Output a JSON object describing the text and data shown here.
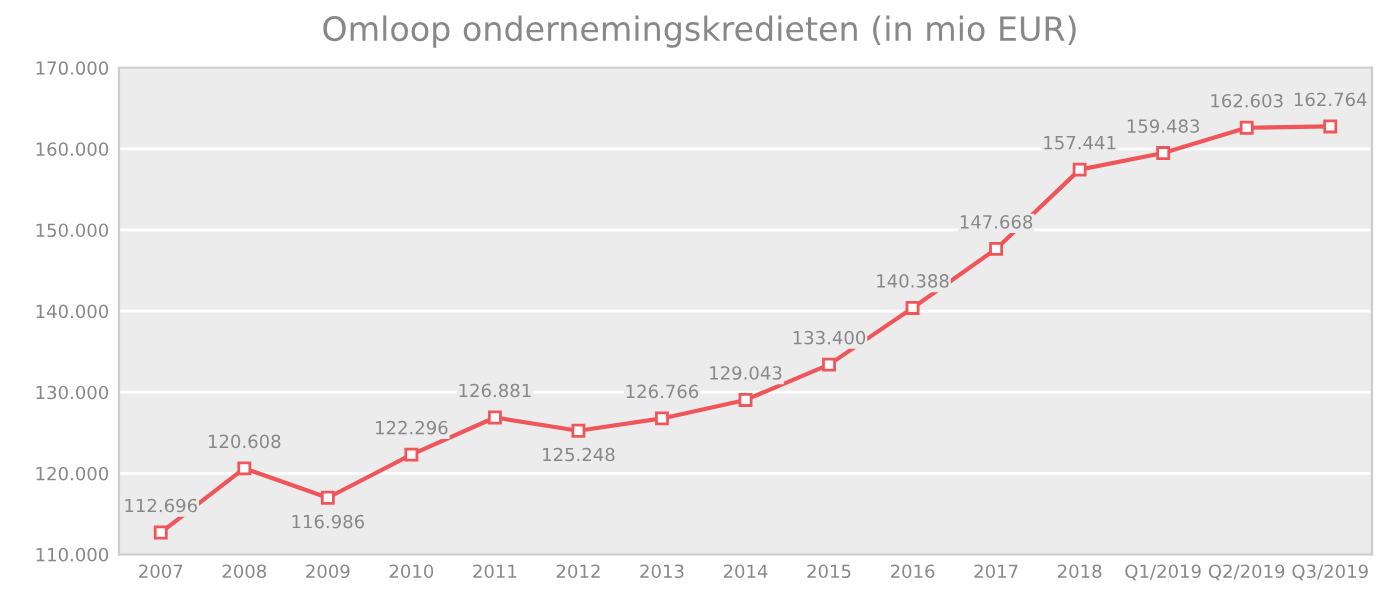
{
  "chart_data": {
    "type": "line",
    "title": "Omloop ondernemingskredieten (in mio EUR)",
    "categories": [
      "2007",
      "2008",
      "2009",
      "2010",
      "2011",
      "2012",
      "2013",
      "2014",
      "2015",
      "2016",
      "2017",
      "2018",
      "Q1/2019",
      "Q2/2019",
      "Q3/2019"
    ],
    "series": [
      {
        "color": "#f0555a",
        "values": [
          112696,
          120608,
          116986,
          122296,
          126881,
          125248,
          126766,
          129043,
          133400,
          140388,
          147668,
          157441,
          159483,
          162603,
          162764
        ],
        "value_labels": [
          "112.696",
          "120.608",
          "116.986",
          "122.296",
          "126.881",
          "125.248",
          "126.766",
          "129.043",
          "133.400",
          "140.388",
          "147.668",
          "157.441",
          "159.483",
          "162.603",
          "162.764"
        ]
      }
    ],
    "ylim": [
      110000,
      170000
    ],
    "yticks": [
      {
        "value": 110000,
        "label": "110.000"
      },
      {
        "value": 120000,
        "label": "120.000"
      },
      {
        "value": 130000,
        "label": "130.000"
      },
      {
        "value": 140000,
        "label": "140.000"
      },
      {
        "value": 150000,
        "label": "150.000"
      },
      {
        "value": 160000,
        "label": "160.000"
      },
      {
        "value": 170000,
        "label": "170.000"
      }
    ],
    "grid": "y",
    "marker": "square",
    "line_style": "solid",
    "legend": false
  }
}
